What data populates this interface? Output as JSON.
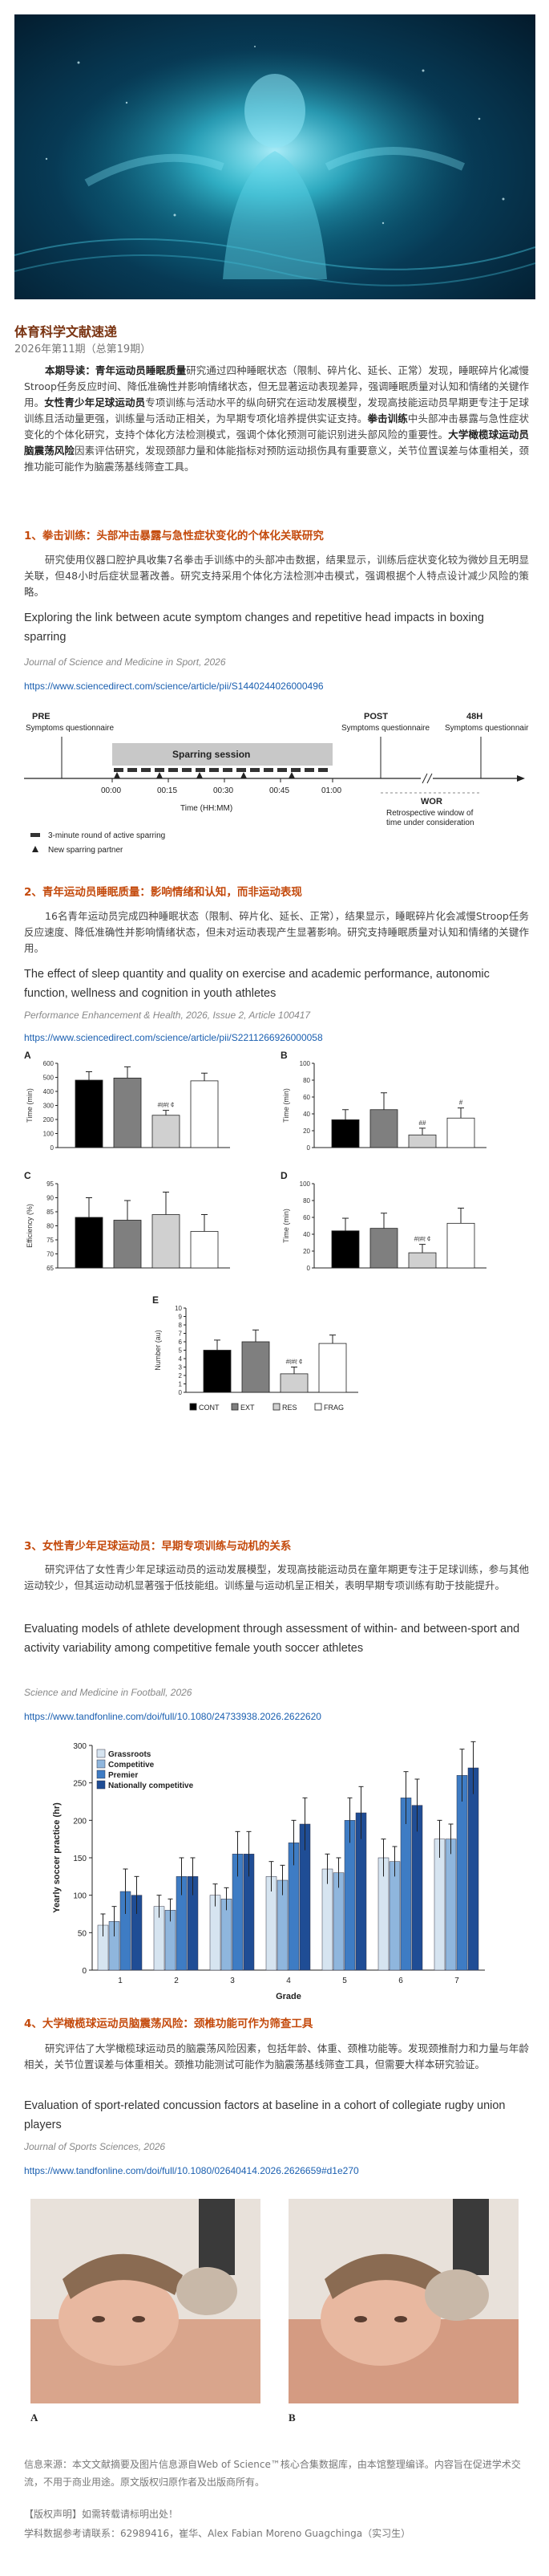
{
  "header": {
    "magazine_title": "体育科学文献速递",
    "issue": "2026年第11期（总第19期）"
  },
  "intro": {
    "label": "本期导读：",
    "text_1": "青年运动员睡眠质量",
    "text_2": "研究通过四种睡眠状态（限制、碎片化、延长、正常）发现，睡眠碎片化减慢Stroop任务反应时间、降低准确性并影响情绪状态，但无显著运动表现差异，强调睡眠质量对认知和情绪的关键作用。",
    "text_3": "女性青少年足球运动员",
    "text_4": "专项训练与活动水平的纵向研究在运动发展模型，发现高技能运动员早期更专注于足球训练且活动量更强，训练量与活动正相关，为早期专项化培养提供实证支持。",
    "text_5": "拳击训练",
    "text_6": "中头部冲击暴露与急性症状变化的个体化研究，支持个体化方法检测模式，强调个体化预测可能识别进头部风险的重要性。",
    "text_7": "大学橄榄球运动员脑震荡风险",
    "text_8": "因素评估研究，发现颈部力量和体能指标对预防运动损伤具有重要意义，关节位置误差与体重相关，颈推功能可能作为脑震荡基线筛查工具。"
  },
  "sections": [
    {
      "title": "1、拳击训练：头部冲击暴露与急性症状变化的个体化关联研究",
      "body": "研究使用仪器口腔护具收集7名拳击手训练中的头部冲击数据，结果显示，训练后症状变化较为微妙且无明显关联，但48小时后症状显著改善。研究支持采用个体化方法检测冲击模式，强调根据个人特点设计减少风险的策略。",
      "english_title": "Exploring the link between acute symptom changes and repetitive head impacts in boxing sparring",
      "journal": "Journal of Science and Medicine in Sport, 2026",
      "doi": "https://www.sciencedirect.com/science/article/pii/S1440244026000496"
    },
    {
      "title": "2、青年运动员睡眠质量：影响情绪和认知，而非运动表现",
      "body": "16名青年运动员完成四种睡眠状态（限制、碎片化、延长、正常），结果显示，睡眠碎片化会减慢Stroop任务反应速度、降低准确性并影响情绪状态，但未对运动表现产生显著影响。研究支持睡眠质量对认知和情绪的关键作用。",
      "english_title": "The effect of sleep quantity and quality on exercise and academic performance, autonomic function, wellness and cognition in youth athletes",
      "journal": "Performance Enhancement & Health, 2026, Issue 2, Article 100417",
      "doi": "https://www.sciencedirect.com/science/article/pii/S2211266926000058"
    },
    {
      "title": "3、女性青少年足球运动员：早期专项训练与动机的关系",
      "body": "研究评估了女性青少年足球运动员的运动发展模型，发现高技能运动员在童年期更专注于足球训练，参与其他运动较少，但其运动动机显著强于低技能组。训练量与运动机呈正相关，表明早期专项训练有助于技能提升。",
      "english_title": "Evaluating models of athlete development through assessment of within- and between-sport and activity variability among competitive female youth soccer athletes",
      "journal": "Science and Medicine in Football, 2026",
      "doi": "https://www.tandfonline.com/doi/full/10.1080/24733938.2026.2622620"
    },
    {
      "title": "4、大学橄榄球运动员脑震荡风险：颈椎功能可作为筛查工具",
      "body": "研究评估了大学橄榄球运动员的脑震荡风险因素，包括年龄、体重、颈椎功能等。发现颈推耐力和力量与年龄相关，关节位置误差与体重相关。颈推功能测试可能作为脑震荡基线筛查工具，但需要大样本研究验证。",
      "english_title": "Evaluation of sport-related concussion factors at baseline in a cohort of collegiate rugby union players",
      "journal": "Journal of Sports Sciences, 2026",
      "doi": "https://www.tandfonline.com/doi/full/10.1080/02640414.2026.2626659#d1e270"
    }
  ],
  "timeline": {
    "pre_label": "PRE",
    "pre_sub": "Symptoms questionnaire",
    "session_label": "Sparring session",
    "post_label": "POST",
    "post_sub": "Symptoms questionnaire",
    "h48_label": "48H",
    "h48_sub": "Symptoms questionnaire",
    "ticks": [
      "00:00",
      "00:15",
      "00:30",
      "00:45",
      "01:00"
    ],
    "axis_label": "Time (HH:MM)",
    "wor_label": "WOR",
    "wor_sub_1": "Retrospective window of",
    "wor_sub_2": "time under consideration",
    "legend_round": "3-minute round of active sparring",
    "legend_partner": "New sparring partner"
  },
  "chart_data": [
    {
      "type": "bar",
      "panel": "A",
      "categories": [
        "CONT",
        "EXT",
        "RES",
        "FRAG"
      ],
      "values": [
        480,
        495,
        230,
        475
      ],
      "errors": [
        60,
        80,
        35,
        55
      ],
      "ylabel": "Time (min)",
      "ylim": [
        0,
        600
      ],
      "yticks": [
        0,
        100,
        200,
        300,
        400,
        500,
        600
      ],
      "annotations": {
        "2": "#ℓ#ℓ ¢"
      }
    },
    {
      "type": "bar",
      "panel": "B",
      "categories": [
        "CONT",
        "EXT",
        "RES",
        "FRAG"
      ],
      "values": [
        33,
        45,
        15,
        35
      ],
      "errors": [
        12,
        20,
        8,
        12
      ],
      "ylabel": "Time (min)",
      "ylim": [
        0,
        100
      ],
      "yticks": [
        0,
        20,
        40,
        60,
        80,
        100
      ],
      "annotations": {
        "2": "##",
        "3": "#"
      }
    },
    {
      "type": "bar",
      "panel": "C",
      "categories": [
        "CONT",
        "EXT",
        "RES",
        "FRAG"
      ],
      "values": [
        83,
        82,
        84,
        78
      ],
      "errors": [
        7,
        7,
        8,
        6
      ],
      "ylabel": "Efficiency (%)",
      "ylim": [
        65,
        95
      ],
      "yticks": [
        65,
        70,
        75,
        80,
        85,
        90,
        95
      ]
    },
    {
      "type": "bar",
      "panel": "D",
      "categories": [
        "CONT",
        "EXT",
        "RES",
        "FRAG"
      ],
      "values": [
        44,
        47,
        18,
        53
      ],
      "errors": [
        15,
        18,
        10,
        18
      ],
      "ylabel": "Time (min)",
      "ylim": [
        0,
        100
      ],
      "yticks": [
        0,
        20,
        40,
        60,
        80,
        100
      ],
      "annotations": {
        "2": "#ℓ#ℓ ¢"
      }
    },
    {
      "type": "bar",
      "panel": "E",
      "categories": [
        "CONT",
        "EXT",
        "RES",
        "FRAG"
      ],
      "values": [
        5,
        6,
        2.2,
        5.8
      ],
      "errors": [
        1.2,
        1.4,
        0.8,
        1.0
      ],
      "ylabel": "Number (au)",
      "ylim": [
        0,
        10
      ],
      "yticks": [
        0,
        1,
        2,
        3,
        4,
        5,
        6,
        7,
        8,
        9,
        10
      ],
      "annotations": {
        "2": "#ℓ#ℓ ¢"
      },
      "legend": [
        "CONT",
        "EXT",
        "RES",
        "FRAG"
      ]
    },
    {
      "type": "bar",
      "categories": [
        "1",
        "2",
        "3",
        "4",
        "5",
        "6",
        "7"
      ],
      "xlabel": "Grade",
      "ylabel": "Yearly soccer practice (hr)",
      "ylim": [
        0,
        300
      ],
      "yticks": [
        0,
        50,
        100,
        150,
        200,
        250,
        300
      ],
      "series": [
        {
          "name": "Grassroots",
          "values": [
            60,
            85,
            100,
            125,
            135,
            150,
            175
          ],
          "errors": [
            15,
            15,
            15,
            20,
            20,
            25,
            25
          ]
        },
        {
          "name": "Competitive",
          "values": [
            65,
            80,
            95,
            120,
            130,
            145,
            175
          ],
          "errors": [
            20,
            15,
            15,
            20,
            20,
            20,
            20
          ]
        },
        {
          "name": "Premier",
          "values": [
            105,
            125,
            155,
            170,
            200,
            230,
            260
          ],
          "errors": [
            30,
            25,
            30,
            30,
            30,
            35,
            35
          ]
        },
        {
          "name": "Nationally competitive",
          "values": [
            100,
            125,
            155,
            195,
            210,
            220,
            270
          ],
          "errors": [
            25,
            25,
            30,
            35,
            35,
            35,
            35
          ]
        }
      ]
    }
  ],
  "photos": {
    "a_label": "A",
    "b_label": "B"
  },
  "footer": {
    "source": "信息来源：本文文献摘要及图片信息源自Web of Science™核心合集数据库，由本馆整理编译。内容旨在促进学术交流，不用于商业用途。原文版权归原作者及出版商所有。",
    "copyright": "【版权声明】如需转载请标明出处！",
    "contact": "学科数据参考请联系：62989416，崔华、Alex Fabian Moreno Guagchinga（实习生）"
  },
  "colors": {
    "section_title": "#c44a0c",
    "magazine_title": "#7a3412",
    "doi_link": "#1a5fb0",
    "bar_cont": "#000000",
    "bar_ext": "#7f7f7f",
    "bar_res": "#d0d0d0",
    "bar_frag": "#ffffff",
    "grassroots": "#d6e4f0",
    "competitive": "#8fb6dd",
    "premier": "#3e7cc4",
    "nationally": "#1f4d95"
  }
}
